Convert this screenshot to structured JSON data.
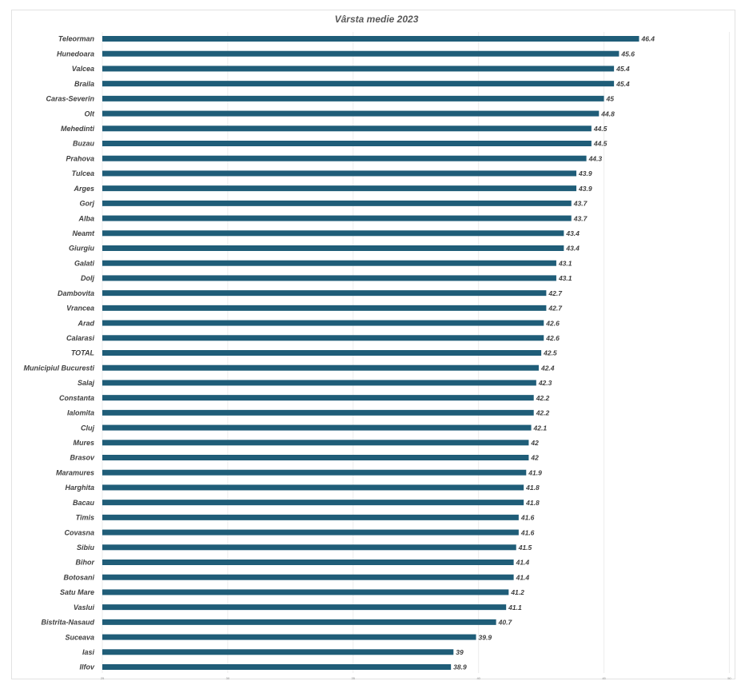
{
  "chart_data": {
    "type": "bar",
    "orientation": "horizontal",
    "title": "Vârsta medie 2023",
    "xlim": [
      25,
      47.5
    ],
    "x_ticks": [
      "25",
      "30",
      "35",
      "40",
      "45",
      "50"
    ],
    "grid": "vertical",
    "bar_color": "#1f5d78",
    "categories": [
      "Teleorman",
      "Hunedoara",
      "Valcea",
      "Braila",
      "Caras-Severin",
      "Olt",
      "Mehedinti",
      "Buzau",
      "Prahova",
      "Tulcea",
      "Arges",
      "Gorj",
      "Alba",
      "Neamt",
      "Giurgiu",
      "Galati",
      "Dolj",
      "Dambovita",
      "Vrancea",
      "Arad",
      "Calarasi",
      "TOTAL",
      "Municipiul Bucuresti",
      "Salaj",
      "Constanta",
      "Ialomita",
      "Cluj",
      "Mures",
      "Brasov",
      "Maramures",
      "Harghita",
      "Bacau",
      "Timis",
      "Covasna",
      "Sibiu",
      "Bihor",
      "Botosani",
      "Satu Mare",
      "Vaslui",
      "Bistrita-Nasaud",
      "Suceava",
      "Iasi",
      "Ilfov"
    ],
    "values": [
      46.4,
      45.6,
      45.4,
      45.4,
      45,
      44.8,
      44.5,
      44.5,
      44.3,
      43.9,
      43.9,
      43.7,
      43.7,
      43.4,
      43.4,
      43.1,
      43.1,
      42.7,
      42.7,
      42.6,
      42.6,
      42.5,
      42.4,
      42.3,
      42.2,
      42.2,
      42.1,
      42,
      42,
      41.9,
      41.8,
      41.8,
      41.6,
      41.6,
      41.5,
      41.4,
      41.4,
      41.2,
      41.1,
      40.7,
      39.9,
      39,
      38.9
    ]
  }
}
